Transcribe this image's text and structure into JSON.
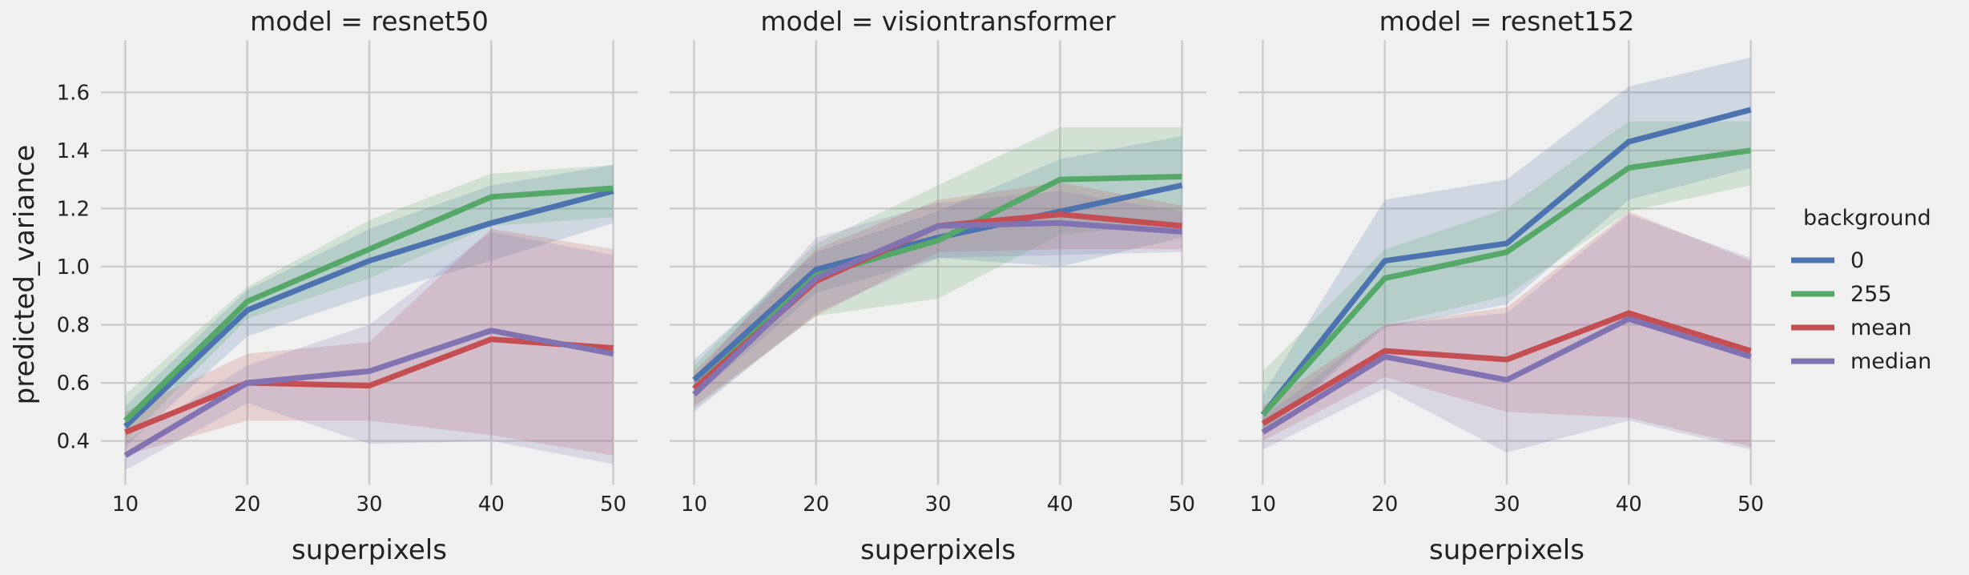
{
  "chart_data": {
    "type": "line",
    "xlabel": "superpixels",
    "ylabel": "predicted_variance",
    "x": [
      10,
      20,
      30,
      40,
      50
    ],
    "xlim": [
      8,
      52
    ],
    "ylim": [
      0.25,
      1.78
    ],
    "xticks": [
      "10",
      "20",
      "30",
      "40",
      "50"
    ],
    "yticks": [
      "0.4",
      "0.6",
      "0.8",
      "1.0",
      "1.2",
      "1.4",
      "1.6"
    ],
    "grid": true,
    "legend": {
      "title": "background",
      "placement": "right",
      "entries": [
        "0",
        "255",
        "mean",
        "median"
      ]
    },
    "colors": {
      "0": "#4c72b0",
      "255": "#55a868",
      "mean": "#c44e52",
      "median": "#8172b2"
    },
    "panels": [
      {
        "title": "model = resnet50",
        "series": [
          {
            "name": "0",
            "values": [
              0.45,
              0.85,
              1.02,
              1.15,
              1.26
            ],
            "lower": [
              0.38,
              0.76,
              0.9,
              1.02,
              1.15
            ],
            "upper": [
              0.52,
              0.92,
              1.13,
              1.28,
              1.35
            ]
          },
          {
            "name": "255",
            "values": [
              0.47,
              0.88,
              1.06,
              1.24,
              1.27
            ],
            "lower": [
              0.4,
              0.82,
              0.96,
              1.14,
              1.17
            ],
            "upper": [
              0.56,
              0.93,
              1.16,
              1.32,
              1.35
            ]
          },
          {
            "name": "mean",
            "values": [
              0.43,
              0.6,
              0.59,
              0.75,
              0.72
            ],
            "lower": [
              0.35,
              0.47,
              0.47,
              0.42,
              0.35
            ],
            "upper": [
              0.5,
              0.7,
              0.74,
              1.13,
              1.06
            ]
          },
          {
            "name": "median",
            "values": [
              0.35,
              0.6,
              0.64,
              0.78,
              0.7
            ],
            "lower": [
              0.3,
              0.53,
              0.39,
              0.4,
              0.32
            ],
            "upper": [
              0.4,
              0.66,
              0.8,
              1.12,
              1.04
            ]
          }
        ]
      },
      {
        "title": "model = visiontransformer",
        "series": [
          {
            "name": "0",
            "values": [
              0.61,
              0.99,
              1.1,
              1.19,
              1.28
            ],
            "lower": [
              0.55,
              0.91,
              1.03,
              1.0,
              1.1
            ],
            "upper": [
              0.68,
              1.05,
              1.19,
              1.37,
              1.45
            ]
          },
          {
            "name": "255",
            "values": [
              0.58,
              0.97,
              1.09,
              1.3,
              1.31
            ],
            "lower": [
              0.51,
              0.83,
              0.89,
              1.11,
              1.15
            ],
            "upper": [
              0.66,
              1.08,
              1.28,
              1.48,
              1.48
            ]
          },
          {
            "name": "mean",
            "values": [
              0.58,
              0.95,
              1.14,
              1.18,
              1.14
            ],
            "lower": [
              0.52,
              0.83,
              1.05,
              1.06,
              1.06
            ],
            "upper": [
              0.64,
              1.06,
              1.23,
              1.29,
              1.21
            ]
          },
          {
            "name": "median",
            "values": [
              0.56,
              0.96,
              1.14,
              1.15,
              1.12
            ],
            "lower": [
              0.5,
              0.84,
              1.03,
              1.04,
              1.05
            ],
            "upper": [
              0.62,
              1.1,
              1.22,
              1.26,
              1.19
            ]
          }
        ]
      },
      {
        "title": "model = resnet152",
        "series": [
          {
            "name": "0",
            "values": [
              0.49,
              1.02,
              1.08,
              1.43,
              1.54
            ],
            "lower": [
              0.42,
              0.79,
              0.87,
              1.23,
              1.34
            ],
            "upper": [
              0.56,
              1.23,
              1.3,
              1.62,
              1.72
            ]
          },
          {
            "name": "255",
            "values": [
              0.49,
              0.96,
              1.05,
              1.34,
              1.4
            ],
            "lower": [
              0.43,
              0.8,
              0.9,
              1.19,
              1.28
            ],
            "upper": [
              0.64,
              1.06,
              1.2,
              1.5,
              1.5
            ]
          },
          {
            "name": "mean",
            "values": [
              0.46,
              0.71,
              0.68,
              0.84,
              0.71
            ],
            "lower": [
              0.4,
              0.62,
              0.5,
              0.48,
              0.38
            ],
            "upper": [
              0.52,
              0.8,
              0.86,
              1.19,
              1.02
            ]
          },
          {
            "name": "median",
            "values": [
              0.43,
              0.69,
              0.61,
              0.82,
              0.69
            ],
            "lower": [
              0.37,
              0.58,
              0.36,
              0.47,
              0.37
            ],
            "upper": [
              0.48,
              0.8,
              0.84,
              1.18,
              1.03
            ]
          }
        ]
      }
    ]
  }
}
